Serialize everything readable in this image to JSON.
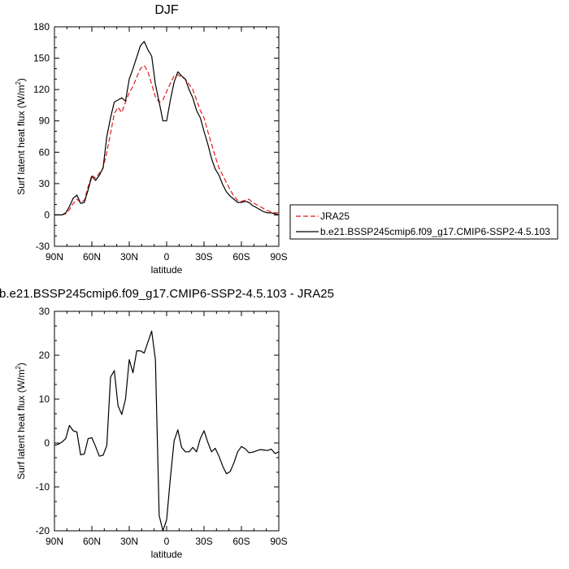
{
  "chart_data": [
    {
      "type": "line",
      "title": "DJF",
      "xlabel": "latitude",
      "ylabel": "Surf latent heat flux (W/m",
      "ylabel_sup": "2",
      "ylabel_close": ")",
      "xlim": [
        90,
        -90
      ],
      "ylim": [
        -30,
        180
      ],
      "xticks": [
        {
          "v": 90,
          "label": "90N"
        },
        {
          "v": 60,
          "label": "60N"
        },
        {
          "v": 30,
          "label": "30N"
        },
        {
          "v": 0,
          "label": "0"
        },
        {
          "v": -30,
          "label": "30S"
        },
        {
          "v": -60,
          "label": "60S"
        },
        {
          "v": -90,
          "label": "90S"
        }
      ],
      "yticks": [
        {
          "v": -30,
          "label": "-30"
        },
        {
          "v": 0,
          "label": "0"
        },
        {
          "v": 30,
          "label": "30"
        },
        {
          "v": 60,
          "label": "60"
        },
        {
          "v": 90,
          "label": "90"
        },
        {
          "v": 120,
          "label": "120"
        },
        {
          "v": 150,
          "label": "150"
        },
        {
          "v": 180,
          "label": "180"
        }
      ],
      "legend_position": "right",
      "series": [
        {
          "name": "JRA25",
          "color": "#e41a1c",
          "dash": true,
          "x": [
            90,
            87,
            84,
            81,
            78,
            75,
            72,
            69,
            66,
            63,
            60,
            57,
            54,
            51,
            48,
            45,
            42,
            39,
            36,
            33,
            30,
            27,
            24,
            21,
            18,
            15,
            12,
            9,
            6,
            3,
            0,
            -3,
            -6,
            -9,
            -12,
            -15,
            -18,
            -21,
            -24,
            -27,
            -30,
            -33,
            -36,
            -39,
            -42,
            -45,
            -48,
            -51,
            -54,
            -57,
            -60,
            -63,
            -66,
            -69,
            -72,
            -75,
            -78,
            -81,
            -84,
            -87,
            -90
          ],
          "y": [
            0,
            0,
            0,
            1,
            5,
            11,
            15,
            12,
            14,
            27,
            38,
            35,
            40,
            45,
            60,
            78,
            97,
            103,
            98,
            108,
            117,
            123,
            132,
            140,
            143,
            137,
            125,
            113,
            108,
            110,
            118,
            126,
            133,
            134,
            132,
            130,
            125,
            120,
            110,
            100,
            93,
            80,
            68,
            56,
            45,
            38,
            31,
            24,
            18,
            14,
            13,
            14,
            15,
            12,
            10,
            8,
            6,
            4,
            3,
            2,
            2
          ]
        },
        {
          "name": "b.e21.BSSP245cmip6.f09_g17.CMIP6-SSP2-4.5.103",
          "color": "#000000",
          "dash": false,
          "x": [
            90,
            87,
            84,
            81,
            78,
            75,
            72,
            69,
            66,
            63,
            60,
            57,
            54,
            51,
            48,
            45,
            42,
            39,
            36,
            33,
            30,
            27,
            24,
            21,
            18,
            15,
            12,
            9,
            6,
            3,
            0,
            -3,
            -6,
            -9,
            -12,
            -15,
            -18,
            -21,
            -24,
            -27,
            -30,
            -33,
            -36,
            -39,
            -42,
            -45,
            -48,
            -51,
            -54,
            -57,
            -60,
            -63,
            -66,
            -69,
            -72,
            -75,
            -78,
            -81,
            -84,
            -87,
            -90
          ],
          "y": [
            0,
            0,
            0,
            2,
            8,
            16,
            19,
            11,
            12,
            24,
            37,
            33,
            38,
            45,
            75,
            93,
            108,
            110,
            112,
            109,
            130,
            140,
            151,
            162,
            166,
            158,
            152,
            125,
            108,
            90,
            90,
            110,
            127,
            137,
            133,
            130,
            120,
            112,
            100,
            93,
            80,
            68,
            54,
            44,
            38,
            29,
            22,
            18,
            15,
            12,
            12,
            13,
            12,
            9,
            7,
            5,
            3,
            2,
            2,
            1,
            0
          ]
        }
      ]
    },
    {
      "type": "line",
      "title": "b.e21.BSSP245cmip6.f09_g17.CMIP6-SSP2-4.5.103 - JRA25",
      "xlabel": "latitude",
      "ylabel": "Surf latent heat flux (W/m",
      "ylabel_sup": "2",
      "ylabel_close": ")",
      "xlim": [
        90,
        -90
      ],
      "ylim": [
        -20,
        30
      ],
      "xticks": [
        {
          "v": 90,
          "label": "90N"
        },
        {
          "v": 60,
          "label": "60N"
        },
        {
          "v": 30,
          "label": "30N"
        },
        {
          "v": 0,
          "label": "0"
        },
        {
          "v": -30,
          "label": "30S"
        },
        {
          "v": -60,
          "label": "60S"
        },
        {
          "v": -90,
          "label": "90S"
        }
      ],
      "yticks": [
        {
          "v": -20,
          "label": "-20"
        },
        {
          "v": -10,
          "label": "-10"
        },
        {
          "v": 0,
          "label": "0"
        },
        {
          "v": 10,
          "label": "10"
        },
        {
          "v": 20,
          "label": "20"
        },
        {
          "v": 30,
          "label": "30"
        }
      ],
      "series": [
        {
          "color": "#000000",
          "dash": false,
          "x": [
            90,
            87,
            84,
            81,
            78,
            75,
            72,
            69,
            66,
            63,
            60,
            57,
            54,
            51,
            48,
            45,
            42,
            39,
            36,
            33,
            30,
            27,
            24,
            21,
            18,
            15,
            12,
            9,
            6,
            3,
            0,
            -3,
            -6,
            -9,
            -12,
            -15,
            -18,
            -21,
            -24,
            -27,
            -30,
            -33,
            -36,
            -39,
            -42,
            -45,
            -48,
            -51,
            -54,
            -57,
            -60,
            -63,
            -66,
            -69,
            -72,
            -75,
            -78,
            -81,
            -84,
            -87,
            -90
          ],
          "y": [
            -0.5,
            -0.3,
            0.2,
            1,
            4,
            2.8,
            2.5,
            -2.7,
            -2.5,
            1,
            1.2,
            -0.8,
            -3,
            -2.8,
            -0.6,
            15,
            16.5,
            8.5,
            6.5,
            10,
            19,
            16,
            21,
            21,
            20.5,
            23,
            25.5,
            19,
            -16.5,
            -20,
            -17.5,
            -8,
            0.5,
            3,
            -1,
            -2,
            -2,
            -1,
            -2,
            1,
            2.8,
            0.2,
            -2,
            -1.2,
            -3,
            -5.3,
            -7,
            -6.5,
            -4.5,
            -2,
            -0.8,
            -1.3,
            -2.2,
            -2.1,
            -1.8,
            -1.5,
            -1.6,
            -1.7,
            -1.4,
            -2.4,
            -2
          ]
        }
      ]
    }
  ]
}
